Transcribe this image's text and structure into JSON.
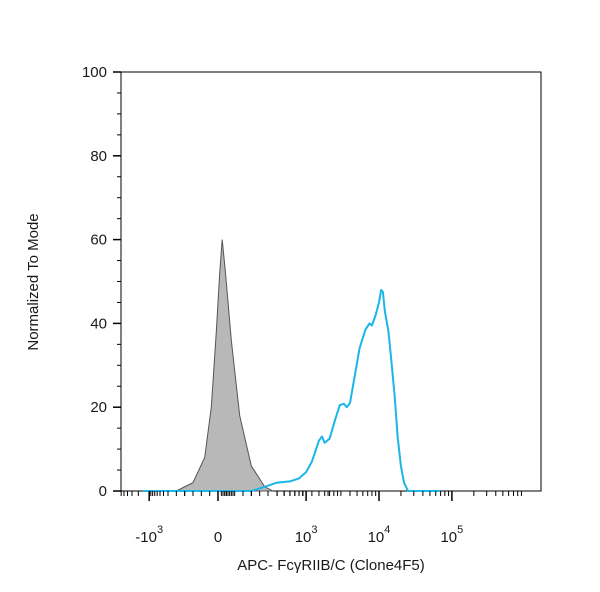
{
  "chart_data": {
    "type": "area",
    "title": "",
    "xlabel": "APC- FcγRIIB/C (Clone4F5)",
    "ylabel": "Normalized To Mode",
    "x_scale": "biexponential",
    "ylim": [
      0,
      100
    ],
    "y_ticks": [
      0,
      20,
      40,
      60,
      80,
      100
    ],
    "x_ticks": [
      {
        "base": "-10",
        "exp": "3",
        "value": -1000
      },
      {
        "base": "0",
        "exp": "",
        "value": 0
      },
      {
        "base": "10",
        "exp": "3",
        "value": 1000
      },
      {
        "base": "10",
        "exp": "4",
        "value": 10000
      },
      {
        "base": "10",
        "exp": "5",
        "value": 100000
      }
    ],
    "grid": false,
    "legend": "none",
    "series": [
      {
        "style": "filled",
        "color": "#b8b8b8",
        "edge_color": "#555555",
        "points": [
          [
            -250,
            0
          ],
          [
            -150,
            2
          ],
          [
            -80,
            8
          ],
          [
            -40,
            20
          ],
          [
            -10,
            38
          ],
          [
            10,
            52
          ],
          [
            25,
            60
          ],
          [
            45,
            52
          ],
          [
            80,
            36
          ],
          [
            130,
            18
          ],
          [
            200,
            6
          ],
          [
            280,
            1
          ],
          [
            350,
            0
          ]
        ]
      },
      {
        "style": "line",
        "color": "#19b6e6",
        "points": [
          [
            -1500,
            0
          ],
          [
            200,
            0
          ],
          [
            280,
            1
          ],
          [
            400,
            2
          ],
          [
            600,
            2.3
          ],
          [
            800,
            3
          ],
          [
            1000,
            4.5
          ],
          [
            1200,
            7
          ],
          [
            1500,
            12
          ],
          [
            1650,
            13
          ],
          [
            1800,
            11.5
          ],
          [
            2100,
            12.5
          ],
          [
            2500,
            17
          ],
          [
            2900,
            20.5
          ],
          [
            3300,
            20.8
          ],
          [
            3600,
            20
          ],
          [
            4000,
            21
          ],
          [
            4600,
            27
          ],
          [
            5400,
            34
          ],
          [
            6500,
            38.5
          ],
          [
            7400,
            40
          ],
          [
            8000,
            39.5
          ],
          [
            9000,
            42
          ],
          [
            10000,
            45
          ],
          [
            10700,
            48
          ],
          [
            11300,
            47.5
          ],
          [
            12000,
            43
          ],
          [
            13500,
            38
          ],
          [
            15000,
            30
          ],
          [
            16500,
            22
          ],
          [
            18000,
            13
          ],
          [
            20000,
            6
          ],
          [
            22000,
            2
          ],
          [
            25000,
            0
          ],
          [
            70000,
            0
          ]
        ]
      }
    ]
  }
}
